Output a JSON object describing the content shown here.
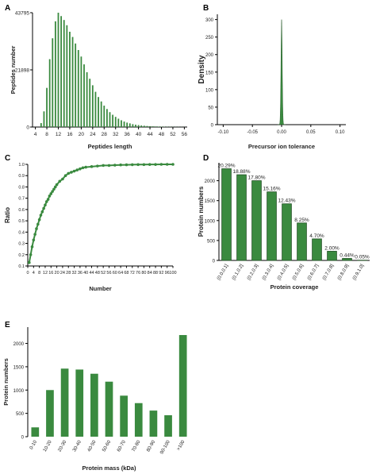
{
  "colors": {
    "bar": "#3a8a3f",
    "bar_edge": "#1f4f22",
    "axis": "#000000",
    "text": "#222222"
  },
  "chart_data": [
    {
      "panel": "A",
      "type": "bar",
      "xlabel": "Peptides length",
      "ylabel": "Peptides number",
      "x_ticks": [
        "4",
        "8",
        "12",
        "16",
        "20",
        "24",
        "28",
        "32",
        "36",
        "40",
        "44",
        "48",
        "52",
        "56"
      ],
      "y_ticks": [
        "0",
        "21898",
        "43795"
      ],
      "ylim": [
        0,
        43795
      ],
      "x": [
        6,
        7,
        8,
        9,
        10,
        11,
        12,
        13,
        14,
        15,
        16,
        17,
        18,
        19,
        20,
        21,
        22,
        23,
        24,
        25,
        26,
        27,
        28,
        29,
        30,
        31,
        32,
        33,
        34,
        35,
        36,
        37,
        38,
        39,
        40,
        41,
        42,
        43,
        44,
        45,
        46,
        47,
        48,
        49,
        50,
        51,
        52,
        53,
        54,
        55,
        56
      ],
      "values": [
        1500,
        6000,
        15000,
        26000,
        34000,
        40500,
        43795,
        42500,
        41000,
        39000,
        36500,
        34500,
        32000,
        29500,
        27000,
        24000,
        21000,
        18500,
        16000,
        13500,
        11500,
        9800,
        8200,
        6900,
        5700,
        4700,
        3900,
        3200,
        2600,
        2100,
        1700,
        1400,
        1100,
        900,
        750,
        600,
        500,
        400,
        330,
        270,
        220,
        180,
        150,
        120,
        100,
        80,
        70,
        60,
        50,
        40,
        30
      ]
    },
    {
      "panel": "B",
      "type": "area",
      "xlabel": "Precursor ion tolerance",
      "ylabel": "Density",
      "x_ticks": [
        "-0.10",
        "-0.05",
        "0.00",
        "0.05",
        "0.10"
      ],
      "y_ticks": [
        "0",
        "50",
        "100",
        "150",
        "200",
        "250",
        "300"
      ],
      "xlim": [
        -0.11,
        0.11
      ],
      "ylim": [
        0,
        315
      ],
      "peak_center": 0.0,
      "peak_height": 300
    },
    {
      "panel": "C",
      "type": "line",
      "xlabel": "Number",
      "ylabel": "Ratio",
      "x_ticks": [
        "0",
        "4",
        "8",
        "12",
        "16",
        "20",
        "24",
        "28",
        "32",
        "36",
        "40",
        "44",
        "48",
        "52",
        "56",
        "60",
        "64",
        "68",
        "72",
        "76",
        "80",
        "84",
        "88",
        "92",
        "96",
        "100"
      ],
      "y_ticks": [
        "0.1",
        "0.2",
        "0.3",
        "0.4",
        "0.5",
        "0.6",
        "0.7",
        "0.8",
        "0.9",
        "1.0"
      ],
      "xlim": [
        0,
        100
      ],
      "ylim": [
        0.1,
        1.0
      ],
      "x": [
        1,
        2,
        3,
        4,
        5,
        6,
        7,
        8,
        9,
        10,
        11,
        12,
        13,
        14,
        15,
        16,
        17,
        18,
        19,
        20,
        22,
        24,
        26,
        28,
        30,
        32,
        34,
        36,
        38,
        40,
        44,
        48,
        52,
        56,
        60,
        64,
        68,
        72,
        76,
        80,
        84,
        88,
        92,
        96,
        100
      ],
      "y": [
        0.13,
        0.2,
        0.27,
        0.33,
        0.38,
        0.43,
        0.47,
        0.51,
        0.55,
        0.58,
        0.61,
        0.64,
        0.67,
        0.69,
        0.72,
        0.74,
        0.76,
        0.78,
        0.8,
        0.82,
        0.85,
        0.87,
        0.9,
        0.92,
        0.93,
        0.94,
        0.95,
        0.96,
        0.97,
        0.975,
        0.98,
        0.985,
        0.99,
        0.99,
        0.993,
        0.995,
        0.996,
        0.997,
        0.998,
        0.998,
        0.999,
        0.999,
        1.0,
        1.0,
        1.0
      ]
    },
    {
      "panel": "D",
      "type": "bar",
      "xlabel": "Protein coverage",
      "ylabel": "Protein numbers",
      "categories": [
        "(0.0,0.1]",
        "(0.1,0.2]",
        "(0.2,0.3]",
        "(0.3,0.4]",
        "(0.4,0.5]",
        "(0.5,0.6]",
        "(0.6,0.7]",
        "(0.7,0.8]",
        "(0.8,0.9]",
        "(0.9,1.0]"
      ],
      "values": [
        2300,
        2150,
        2000,
        1720,
        1420,
        940,
        540,
        230,
        50,
        6
      ],
      "labels": [
        "20.29%",
        "18.88%",
        "17.80%",
        "15.16%",
        "12.43%",
        "8.25%",
        "4.70%",
        "2.00%",
        "0.44%",
        "0.05%"
      ],
      "y_ticks": [
        "0",
        "500",
        "1000",
        "1500",
        "2000"
      ],
      "ylim": [
        0,
        2450
      ]
    },
    {
      "panel": "E",
      "type": "bar",
      "xlabel": "Protein mass (kDa)",
      "ylabel": "Protein numbers",
      "categories": [
        "0-10",
        "10-20",
        "20-30",
        "30-40",
        "40-50",
        "50-60",
        "60-70",
        "70-80",
        "80-90",
        "90-100",
        ">100"
      ],
      "values": [
        200,
        1000,
        1460,
        1440,
        1350,
        1180,
        880,
        720,
        560,
        460,
        2180
      ],
      "y_ticks": [
        "0",
        "500",
        "1000",
        "1500",
        "2000"
      ],
      "ylim": [
        0,
        2350
      ]
    }
  ]
}
